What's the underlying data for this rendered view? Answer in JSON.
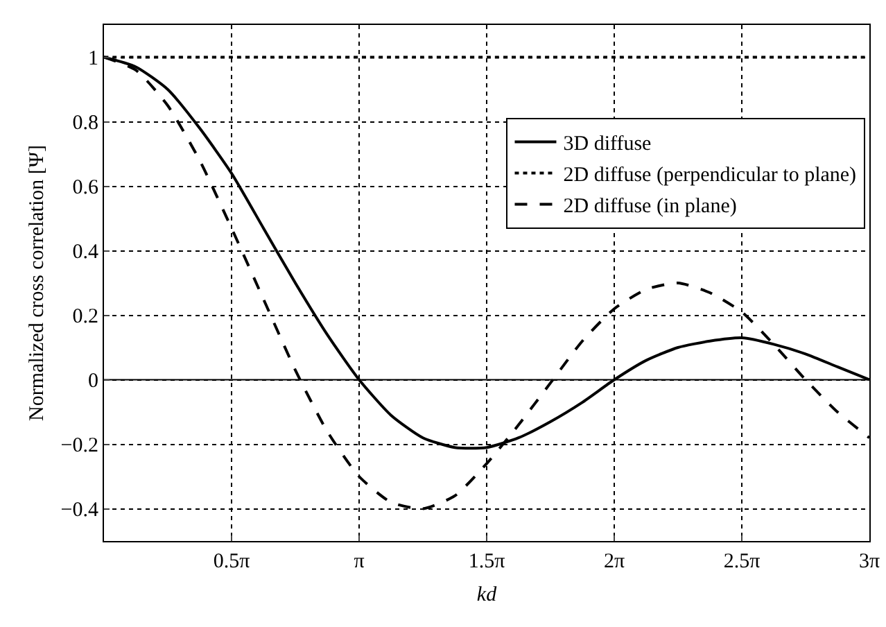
{
  "chart_data": {
    "type": "line",
    "xlabel": "kd",
    "ylabel": "Normalized cross correlation [Ψ]",
    "x": [
      0,
      0.3927,
      0.7854,
      1.1781,
      1.5708,
      1.9635,
      2.3562,
      2.7489,
      3.1416,
      3.5343,
      3.927,
      4.3197,
      4.7124,
      5.1051,
      5.4978,
      5.8905,
      6.2832,
      6.6759,
      7.0686,
      7.4613,
      7.854,
      8.2467,
      8.6394,
      9.0321,
      9.4248
    ],
    "series": [
      {
        "name": "3D diffuse",
        "color": "#000000",
        "line_style": "solid",
        "values": [
          1,
          0.97,
          0.9,
          0.78,
          0.64,
          0.47,
          0.3,
          0.14,
          0,
          -0.11,
          -0.18,
          -0.21,
          -0.21,
          -0.18,
          -0.13,
          -0.07,
          0,
          0.06,
          0.1,
          0.12,
          0.13,
          0.11,
          0.08,
          0.04,
          0
        ]
      },
      {
        "name": "2D diffuse (perpendicular to plane)",
        "color": "#000000",
        "line_style": "dotted",
        "values": [
          1,
          1,
          1,
          1,
          1,
          1,
          1,
          1,
          1,
          1,
          1,
          1,
          1,
          1,
          1,
          1,
          1,
          1,
          1,
          1,
          1,
          1,
          1,
          1,
          1
        ]
      },
      {
        "name": "2D diffuse (in plane)",
        "color": "#000000",
        "line_style": "dashed",
        "values": [
          1,
          0.96,
          0.85,
          0.68,
          0.47,
          0.25,
          0.03,
          -0.16,
          -0.3,
          -0.38,
          -0.4,
          -0.36,
          -0.26,
          -0.14,
          -0.01,
          0.12,
          0.22,
          0.28,
          0.3,
          0.27,
          0.21,
          0.11,
          0,
          -0.1,
          -0.18
        ]
      }
    ],
    "xlim": [
      0,
      9.4248
    ],
    "xticks": [
      {
        "value": 1.5708,
        "label": "0.5π"
      },
      {
        "value": 3.1416,
        "label": "π"
      },
      {
        "value": 4.7124,
        "label": "1.5π"
      },
      {
        "value": 6.2832,
        "label": "2π"
      },
      {
        "value": 7.854,
        "label": "2.5π"
      },
      {
        "value": 9.4248,
        "label": "3π"
      }
    ],
    "ylim": [
      -0.5,
      1.1
    ],
    "yticks": [
      -0.4,
      -0.2,
      0,
      0.2,
      0.4,
      0.6,
      0.8,
      1
    ],
    "ref_lines": [
      {
        "axis": "y",
        "value": 0,
        "color": "#000000",
        "line_style": "solid"
      }
    ],
    "grid": true,
    "legend": "top right",
    "marker": "none"
  }
}
